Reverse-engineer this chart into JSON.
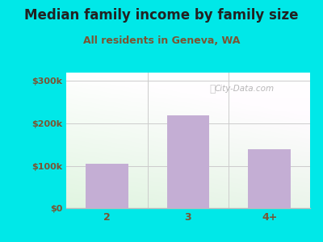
{
  "title": "Median family income by family size",
  "subtitle": "All residents in Geneva, WA",
  "categories": [
    "2",
    "3",
    "4+"
  ],
  "values": [
    105000,
    220000,
    140000
  ],
  "bar_color": "#c4aed4",
  "background_color": "#00e8e8",
  "title_color": "#222222",
  "subtitle_color": "#7a5533",
  "tick_label_color": "#7a5533",
  "ytick_labels": [
    "$0",
    "$100k",
    "$200k",
    "$300k"
  ],
  "ytick_values": [
    0,
    100000,
    200000,
    300000
  ],
  "ylim": [
    0,
    320000
  ],
  "title_fontsize": 12,
  "subtitle_fontsize": 9,
  "watermark_text": "City-Data.com",
  "axis_line_color": "#bbbbbb",
  "grid_color": "#cccccc"
}
